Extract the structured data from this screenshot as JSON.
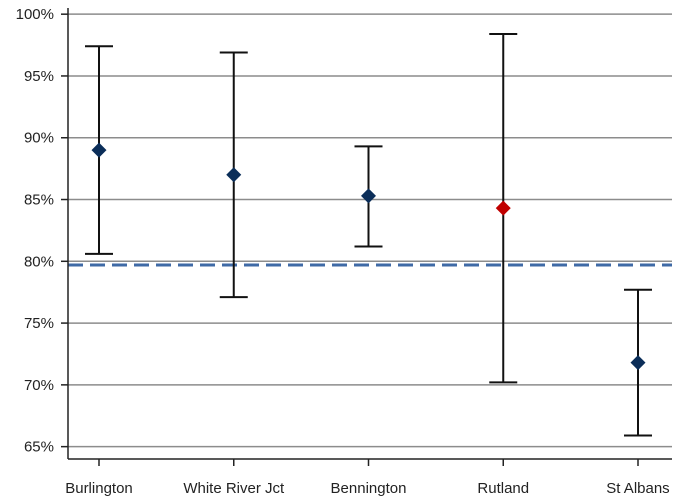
{
  "chart_data": {
    "type": "scatter",
    "title": "",
    "xlabel": "",
    "ylabel": "",
    "categories": [
      "Burlington",
      "White River Jct",
      "Bennington",
      "Rutland",
      "St Albans"
    ],
    "values": [
      89.0,
      87.0,
      85.3,
      84.3,
      71.8
    ],
    "error_low": [
      80.6,
      77.1,
      81.2,
      70.2,
      65.9
    ],
    "error_high": [
      97.4,
      96.9,
      89.3,
      98.4,
      77.7
    ],
    "point_colors": [
      "#0b2e59",
      "#0b2e59",
      "#0b2e59",
      "#c00000",
      "#0b2e59"
    ],
    "reference_line": {
      "value": 79.7,
      "color": "#3f6aa6",
      "style": "dashed"
    },
    "ylim": [
      64,
      100.5
    ],
    "yticks": [
      65,
      70,
      75,
      80,
      85,
      90,
      95,
      100
    ],
    "ytick_labels": [
      "65%",
      "70%",
      "75%",
      "80%",
      "85%",
      "90%",
      "95%",
      "100%"
    ],
    "grid": true,
    "legend": "none"
  }
}
